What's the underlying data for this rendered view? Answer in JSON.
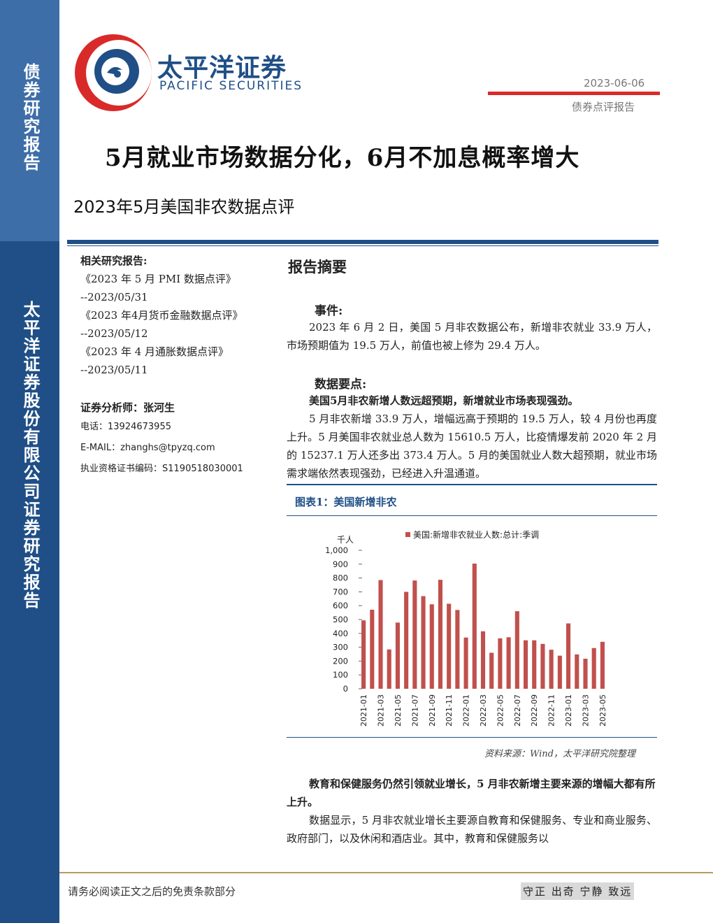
{
  "sidebar": {
    "top_label": "债券研究报告",
    "bottom_label": "太平洋证券股份有限公司证券研究报告"
  },
  "header": {
    "logo_cn": "太平洋证券",
    "logo_en": "PACIFIC SECURITIES",
    "date": "2023-06-06",
    "report_type": "债券点评报告"
  },
  "title": "5月就业市场数据分化，6月不加息概率增大",
  "subtitle": "2023年5月美国非农数据点评",
  "related": {
    "heading": "相关研究报告:",
    "items": [
      {
        "name": "《2023 年 5 月 PMI 数据点评》",
        "date": "--2023/05/31"
      },
      {
        "name": "《2023 年4月货币金融数据点评》",
        "date": "--2023/05/12"
      },
      {
        "name": "《2023 年 4 月通胀数据点评》",
        "date": "--2023/05/11"
      }
    ]
  },
  "analyst": {
    "heading": "证券分析师：张河生",
    "phone": "电话：13924673955",
    "email": "E-MAIL：zhanghs@tpyzq.com",
    "cert": "执业资格证书编码：S1190518030001"
  },
  "summary": {
    "heading": "报告摘要",
    "event_heading": "事件:",
    "event_text": "2023 年 6 月 2 日，美国 5 月非农数据公布，新增非农就业 33.9 万人，市场预期值为 19.5 万人，前值也被上修为 29.4 万人。",
    "points_heading": "数据要点:",
    "point1_bold": "美国5月非农新增人数远超预期，新增就业市场表现强劲。",
    "point1_text": "5 月非农新增 33.9 万人，增幅远高于预期的 19.5 万人，较 4 月份也再度上升。5 月美国非农就业总人数为 15610.5 万人，比疫情爆发前 2020 年 2 月的 15237.1 万人还多出 373.4 万人。5 月的美国就业人数大超预期，就业市场需求端依然表现强劲，已经进入升温通道。",
    "point2_bold": "教育和保健服务仍然引领就业增长，5 月非农新增主要来源的增幅大都有所上升。",
    "point2_text": "数据显示，5 月非农就业增长主要源自教育和保健服务、专业和商业服务、政府部门，以及休闲和酒店业。其中，教育和保健服务以"
  },
  "figure": {
    "label": "图表1：美国新增非农",
    "source": "资料来源：Wind，太平洋研究院整理"
  },
  "chart_data": {
    "type": "bar",
    "ylabel": "千人",
    "ylim": [
      0,
      1000
    ],
    "yticks": [
      "1,000",
      "900",
      "800",
      "700",
      "600",
      "500",
      "400",
      "300",
      "200",
      "100",
      "0"
    ],
    "legend": "美国:新增非农就业人数:总计:季调",
    "color": "#c0504d",
    "categories": [
      "2021-01",
      "2021-02",
      "2021-03",
      "2021-04",
      "2021-05",
      "2021-06",
      "2021-07",
      "2021-08",
      "2021-09",
      "2021-10",
      "2021-11",
      "2021-12",
      "2022-01",
      "2022-02",
      "2022-03",
      "2022-04",
      "2022-05",
      "2022-06",
      "2022-07",
      "2022-08",
      "2022-09",
      "2022-10",
      "2022-11",
      "2022-12",
      "2023-01",
      "2023-02",
      "2023-03",
      "2023-04",
      "2023-05"
    ],
    "tick_labels": [
      "2021-01",
      "2021-03",
      "2021-05",
      "2021-07",
      "2021-09",
      "2021-11",
      "2022-01",
      "2022-03",
      "2022-05",
      "2022-07",
      "2022-09",
      "2022-11",
      "2023-01",
      "2023-03",
      "2023-05"
    ],
    "values": [
      494,
      571,
      785,
      284,
      478,
      700,
      782,
      669,
      610,
      787,
      614,
      569,
      370,
      904,
      415,
      260,
      364,
      372,
      560,
      350,
      350,
      324,
      282,
      239,
      472,
      248,
      217,
      294,
      339
    ]
  },
  "footer": {
    "disclaimer": "请务必阅读正文之后的免责条款部分",
    "motto": "守正 出奇 宁静 致远"
  }
}
